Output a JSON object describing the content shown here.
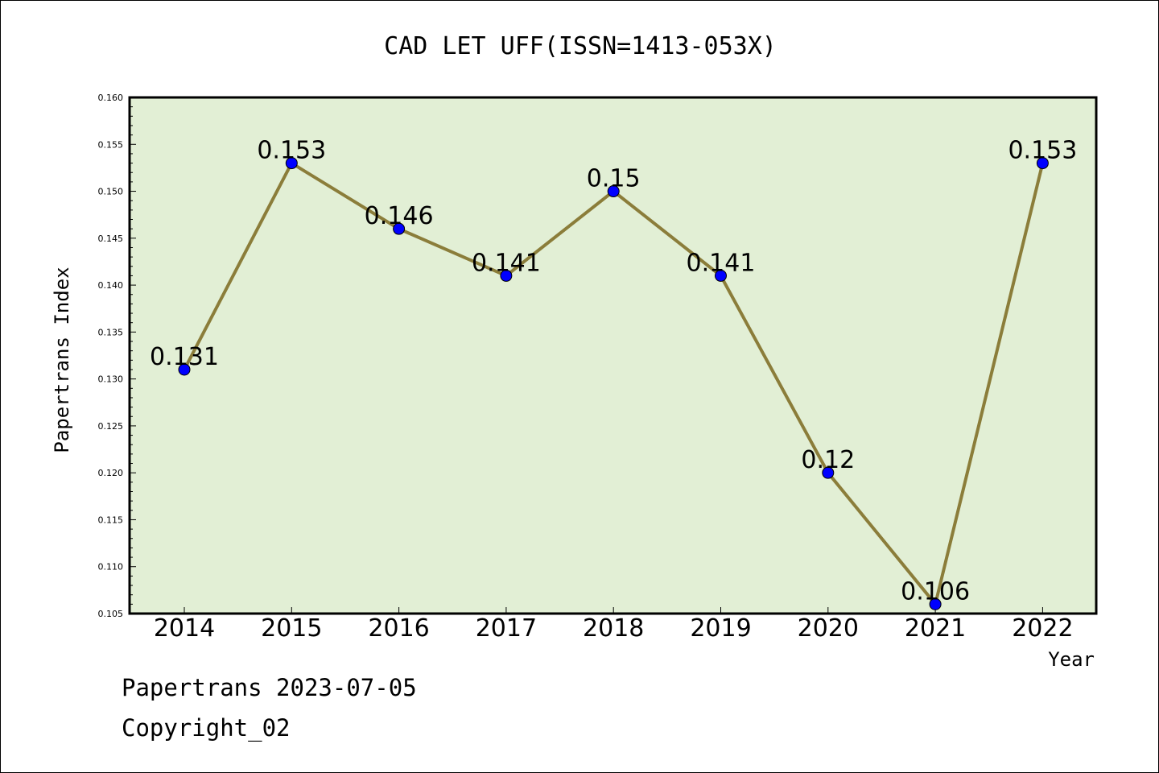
{
  "chart_data": {
    "type": "line",
    "title": "CAD LET UFF(ISSN=1413-053X)",
    "xlabel": "Year",
    "ylabel": "Papertrans Index",
    "categories": [
      "2014",
      "2015",
      "2016",
      "2017",
      "2018",
      "2019",
      "2020",
      "2021",
      "2022"
    ],
    "values": [
      0.131,
      0.153,
      0.146,
      0.141,
      0.15,
      0.141,
      0.12,
      0.106,
      0.153
    ],
    "data_labels": [
      "0.131",
      "0.153",
      "0.146",
      "0.141",
      "0.15",
      "0.141",
      "0.12",
      "0.106",
      "0.153"
    ],
    "ylim": [
      0.105,
      0.16
    ],
    "yticks": [
      "0.105",
      "0.110",
      "0.115",
      "0.120",
      "0.125",
      "0.130",
      "0.135",
      "0.140",
      "0.145",
      "0.150",
      "0.155",
      "0.160"
    ],
    "grid": false,
    "colors": {
      "plot_background": "#e2efd5",
      "line": "#8b7d3a",
      "marker": "#0000ff"
    }
  },
  "footer": {
    "line1": "Papertrans 2023-07-05",
    "line2": "Copyright_02"
  }
}
